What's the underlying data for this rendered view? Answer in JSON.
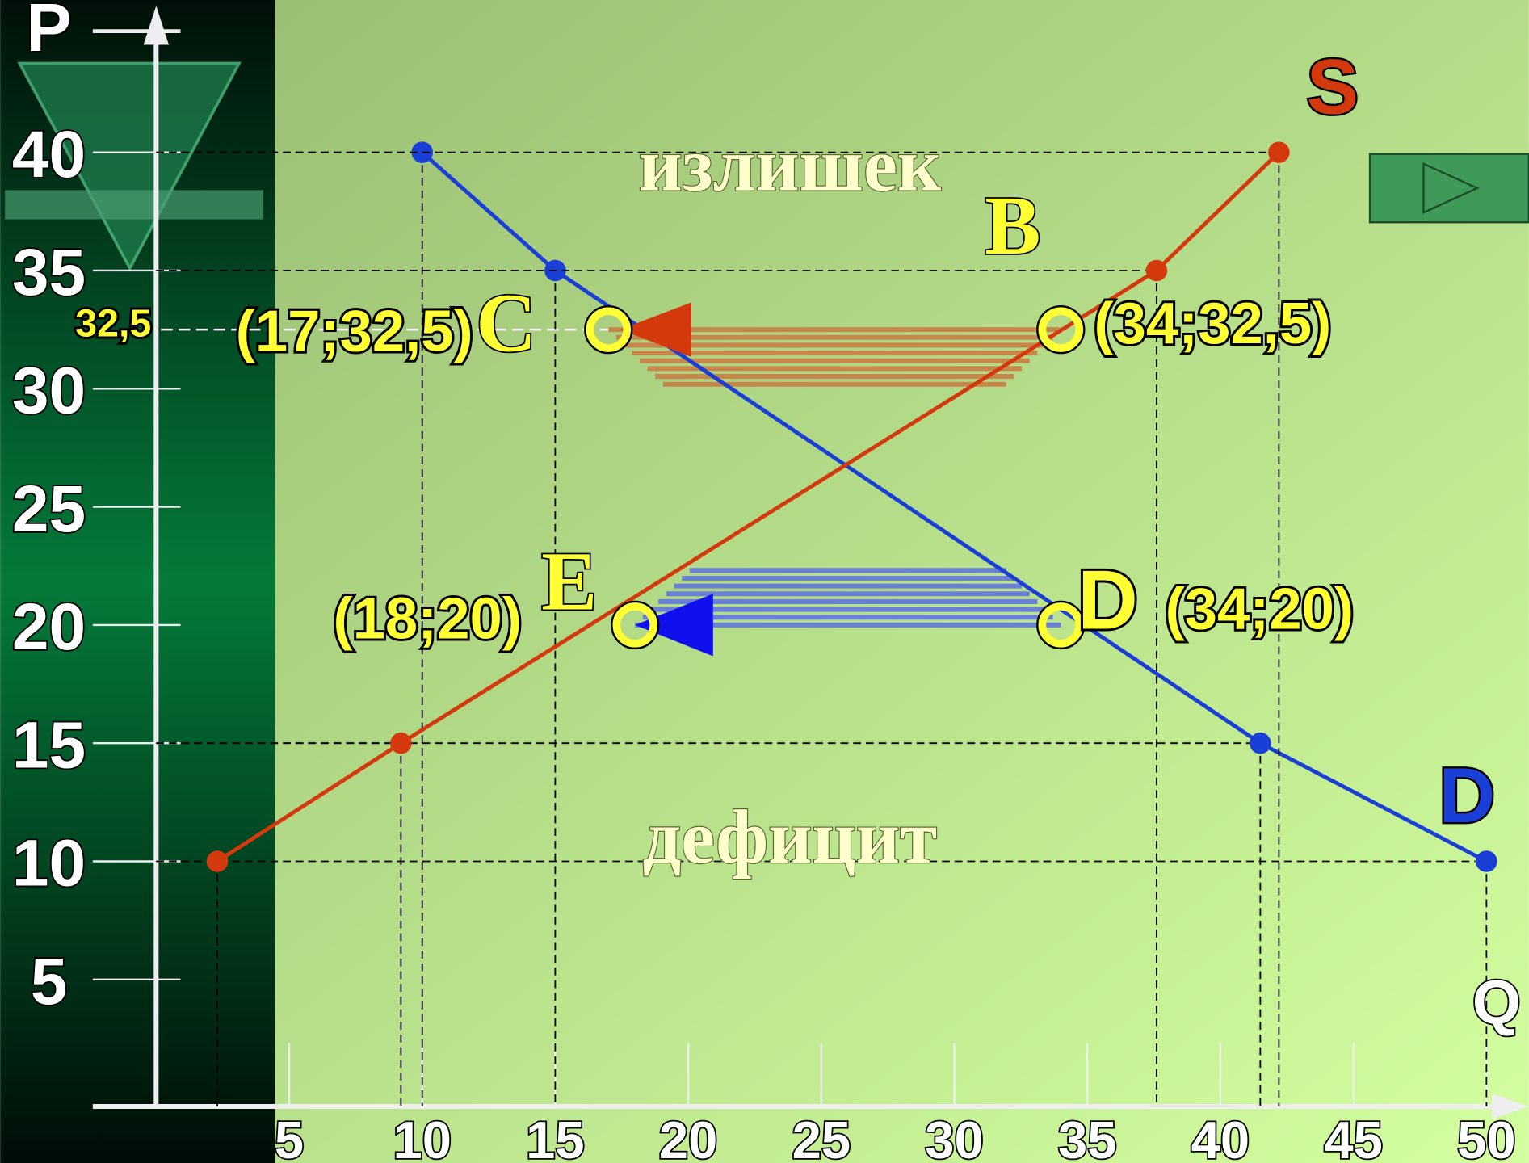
{
  "chart_data": {
    "type": "line",
    "x_label": "Q",
    "y_label": "P",
    "xlim": [
      0,
      51.3
    ],
    "ylim": [
      0,
      46.2
    ],
    "xticks": [
      5,
      10,
      15,
      20,
      25,
      30,
      35,
      40,
      45,
      50
    ],
    "yticks": [
      5,
      10,
      15,
      20,
      25,
      30,
      35,
      40
    ],
    "series": [
      {
        "name": "D",
        "color": "#1a3fd6",
        "x": [
          10,
          15,
          41.5,
          50
        ],
        "values": [
          40,
          35,
          15,
          10
        ]
      },
      {
        "name": "S",
        "color": "#d4380d",
        "x": [
          2.3,
          9.2,
          37.6,
          42.2
        ],
        "values": [
          10,
          15,
          35,
          40
        ]
      }
    ],
    "price_marker": {
      "value": 32.5,
      "label": "32,5"
    },
    "points": [
      {
        "label": "(17;32,5)",
        "letter": "C",
        "x": 17,
        "y": 32.5
      },
      {
        "label": "(34;32,5)",
        "letter": "B",
        "x": 34,
        "y": 32.5
      },
      {
        "label": "(18;20)",
        "letter": "E",
        "x": 18,
        "y": 20
      },
      {
        "label": "(34;20)",
        "letter": "D",
        "x": 34,
        "y": 20
      }
    ],
    "surplus_label": "излишек",
    "deficit_label": "дефицит"
  }
}
